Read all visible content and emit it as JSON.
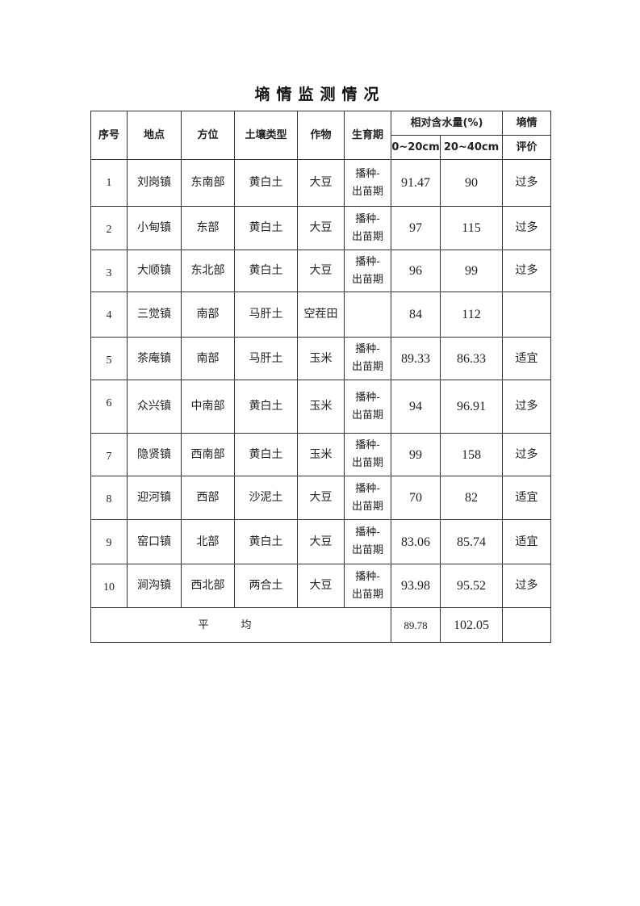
{
  "title": "墒情监测情况",
  "headers": {
    "serial": "序号",
    "location": "地点",
    "direction": "方位",
    "soil_type": "土壤类型",
    "crop": "作物",
    "growth_stage": "生育期",
    "moisture": "相对含水量(%)",
    "depth_1": "0~20cm",
    "depth_2": "20~40cm",
    "evaluation_1": "墒情",
    "evaluation_2": "评价"
  },
  "rows": [
    {
      "no": "1",
      "place": "刘岗镇",
      "dir": "东南部",
      "soil": "黄白土",
      "crop": "大豆",
      "stage1": "播种-",
      "stage2": "出苗期",
      "m1": "91.47",
      "m2": "90",
      "eval": "过多"
    },
    {
      "no": "2",
      "place": "小甸镇",
      "dir": "东部",
      "soil": "黄白土",
      "crop": "大豆",
      "stage1": "播种-",
      "stage2": "出苗期",
      "m1": "97",
      "m2": "115",
      "eval": "过多"
    },
    {
      "no": "3",
      "place": "大顺镇",
      "dir": "东北部",
      "soil": "黄白土",
      "crop": "大豆",
      "stage1": "播种-",
      "stage2": "出苗期",
      "m1": "96",
      "m2": "99",
      "eval": "过多"
    },
    {
      "no": "4",
      "place": "三觉镇",
      "dir": "南部",
      "soil": "马肝土",
      "crop": "空茬田",
      "stage1": "",
      "stage2": "",
      "m1": "84",
      "m2": "112",
      "eval": ""
    },
    {
      "no": "5",
      "place": "茶庵镇",
      "dir": "南部",
      "soil": "马肝土",
      "crop": "玉米",
      "stage1": "播种-",
      "stage2": "出苗期",
      "m1": "89.33",
      "m2": "86.33",
      "eval": "适宜"
    },
    {
      "no": "6",
      "place": "众兴镇",
      "dir": "中南部",
      "soil": "黄白土",
      "crop": "玉米",
      "stage1": "播种-",
      "stage2": "出苗期",
      "m1": "94",
      "m2": "96.91",
      "eval": "过多"
    },
    {
      "no": "7",
      "place": "隐贤镇",
      "dir": "西南部",
      "soil": "黄白土",
      "crop": "玉米",
      "stage1": "播种-",
      "stage2": "出苗期",
      "m1": "99",
      "m2": "158",
      "eval": "过多"
    },
    {
      "no": "8",
      "place": "迎河镇",
      "dir": "西部",
      "soil": "沙泥土",
      "crop": "大豆",
      "stage1": "播种-",
      "stage2": "出苗期",
      "m1": "70",
      "m2": "82",
      "eval": "适宜"
    },
    {
      "no": "9",
      "place": "窑口镇",
      "dir": "北部",
      "soil": "黄白土",
      "crop": "大豆",
      "stage1": "播种-",
      "stage2": "出苗期",
      "m1": "83.06",
      "m2": "85.74",
      "eval": "适宜"
    },
    {
      "no": "10",
      "place": "涧沟镇",
      "dir": "西北部",
      "soil": "两合土",
      "crop": "大豆",
      "stage1": "播种-",
      "stage2": "出苗期",
      "m1": "93.98",
      "m2": "95.52",
      "eval": "过多"
    }
  ],
  "average": {
    "label": "平均",
    "m1": "89.78",
    "m2": "102.05",
    "eval": ""
  }
}
